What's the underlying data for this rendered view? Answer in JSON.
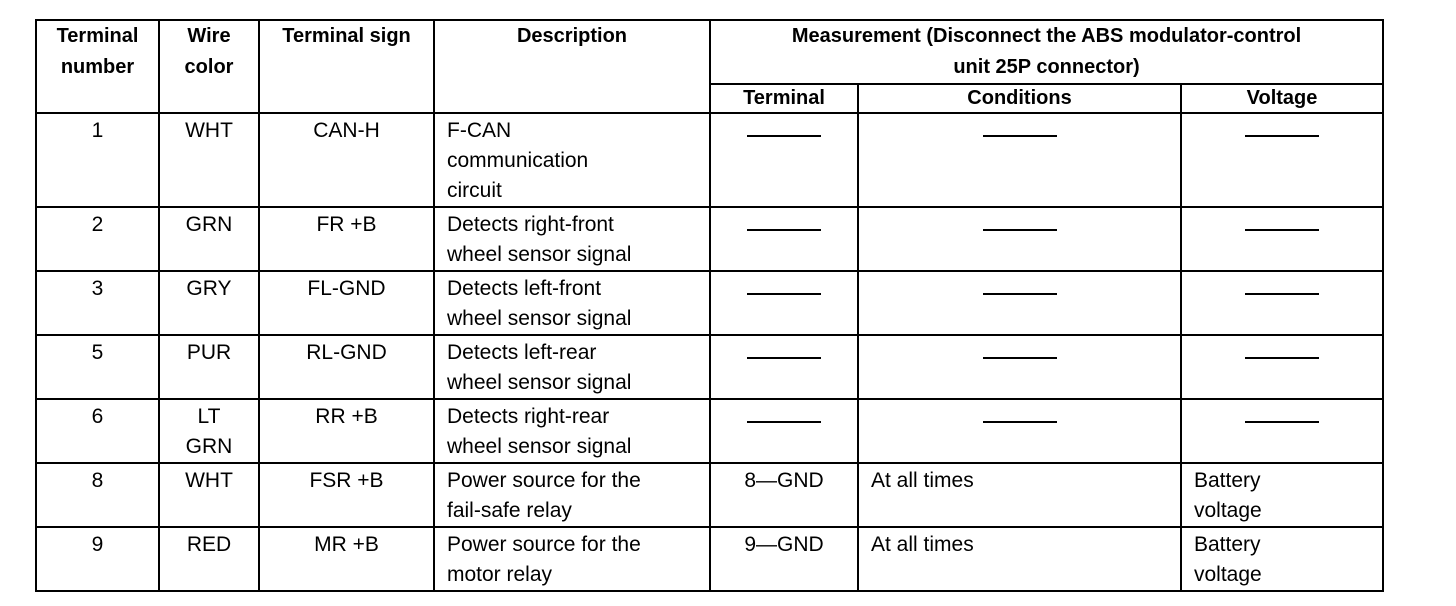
{
  "table": {
    "headers": {
      "terminal_number": "Terminal\nnumber",
      "wire_color": "Wire\ncolor",
      "terminal_sign": "Terminal sign",
      "description": "Description",
      "measurement": "Measurement (Disconnect the ABS modulator-control\nunit 25P connector)",
      "terminal": "Terminal",
      "conditions": "Conditions",
      "voltage": "Voltage"
    },
    "rows": [
      {
        "number": "1",
        "wire": "WHT",
        "sign": "CAN-H",
        "description": "F-CAN\ncommunication\ncircuit",
        "terminal": "——",
        "conditions": "——",
        "voltage": "——"
      },
      {
        "number": "2",
        "wire": "GRN",
        "sign": "FR +B",
        "description": "Detects right-front\nwheel sensor signal",
        "terminal": "——",
        "conditions": "——",
        "voltage": "——"
      },
      {
        "number": "3",
        "wire": "GRY",
        "sign": "FL-GND",
        "description": "Detects left-front\nwheel sensor signal",
        "terminal": "——",
        "conditions": "——",
        "voltage": "——"
      },
      {
        "number": "5",
        "wire": "PUR",
        "sign": "RL-GND",
        "description": "Detects left-rear\nwheel sensor signal",
        "terminal": "——",
        "conditions": "——",
        "voltage": "——"
      },
      {
        "number": "6",
        "wire": "LT\nGRN",
        "sign": "RR +B",
        "description": "Detects right-rear\nwheel sensor signal",
        "terminal": "——",
        "conditions": "——",
        "voltage": "——"
      },
      {
        "number": "8",
        "wire": "WHT",
        "sign": "FSR +B",
        "description": "Power source for the\nfail-safe relay",
        "terminal": "8—GND",
        "conditions": "At all times",
        "voltage": "Battery\nvoltage"
      },
      {
        "number": "9",
        "wire": "RED",
        "sign": "MR +B",
        "description": "Power source for the\nmotor relay",
        "terminal": "9—GND",
        "conditions": "At all times",
        "voltage": "Battery\nvoltage"
      }
    ]
  }
}
